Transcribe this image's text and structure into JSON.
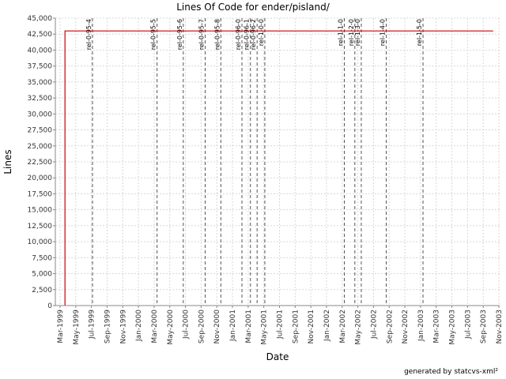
{
  "chart_data": {
    "type": "line",
    "title": "Lines Of Code for ender/pisland/",
    "xlabel": "Date",
    "ylabel": "Lines",
    "ylim": [
      0,
      45000
    ],
    "yticks": [
      "0",
      "2,500",
      "5,000",
      "7,500",
      "10,000",
      "12,500",
      "15,000",
      "17,500",
      "20,000",
      "22,500",
      "25,000",
      "27,500",
      "30,000",
      "32,500",
      "35,000",
      "37,500",
      "40,000",
      "42,500",
      "45,000"
    ],
    "xticks": [
      "Mar-1999",
      "May-1999",
      "Jul-1999",
      "Sep-1999",
      "Nov-1999",
      "Jan-2000",
      "Mar-2000",
      "May-2000",
      "Jul-2000",
      "Sep-2000",
      "Nov-2000",
      "Jan-2001",
      "Mar-2001",
      "May-2001",
      "Jul-2001",
      "Sep-2001",
      "Nov-2001",
      "Jan-2002",
      "Mar-2002",
      "May-2002",
      "Jul-2002",
      "Sep-2002",
      "Nov-2002",
      "Jan-2003",
      "Mar-2003",
      "May-2003",
      "Jul-2003",
      "Sep-2003",
      "Nov-2003"
    ],
    "grid": true,
    "series": [
      {
        "color": "#cc0000",
        "points": [
          {
            "x": "1999-03-20",
            "y": 0
          },
          {
            "x": "1999-03-20",
            "y": 43000
          },
          {
            "x": "2003-10-10",
            "y": 43000
          }
        ]
      }
    ],
    "markers": [
      {
        "label": "rel-0-95-4",
        "x": "1999-07-05"
      },
      {
        "label": "rel-0-95-5",
        "x": "2000-03-12"
      },
      {
        "label": "rel-0-95-6",
        "x": "2000-06-22"
      },
      {
        "label": "rel-0-95-7",
        "x": "2000-09-15"
      },
      {
        "label": "rel-0-95-8",
        "x": "2000-11-15"
      },
      {
        "label": "rel-0-96-0",
        "x": "2001-02-05"
      },
      {
        "label": "rel-0-96-1",
        "x": "2001-03-10"
      },
      {
        "label": "rel-0-96-2",
        "x": "2001-04-05"
      },
      {
        "label": "rel-1-0-0",
        "x": "2001-05-05"
      },
      {
        "label": "rel-1-1-0",
        "x": "2002-03-10"
      },
      {
        "label": "rel-1-2-0",
        "x": "2002-04-20"
      },
      {
        "label": "rel-1-3-0",
        "x": "2002-05-15"
      },
      {
        "label": "rel-1-4-0",
        "x": "2002-08-20"
      },
      {
        "label": "rel-1-5-0",
        "x": "2003-01-10"
      }
    ]
  },
  "footer": "generated by statcvs-xml²"
}
